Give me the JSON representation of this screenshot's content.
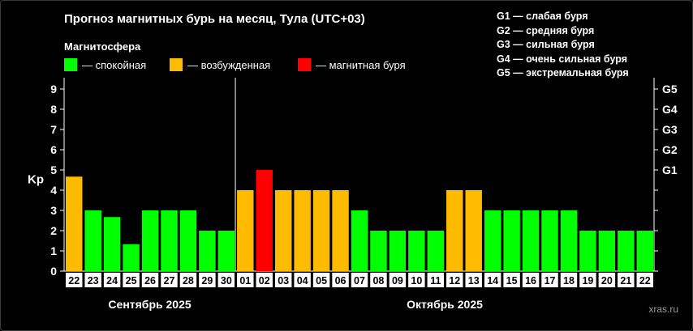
{
  "chart_data": {
    "type": "bar",
    "title": "Прогноз магнитных бурь на месяц, Тула (UTC+03)",
    "ylabel": "Kp",
    "ylim": [
      0,
      9
    ],
    "yticks": [
      "0",
      "1",
      "2",
      "3",
      "4",
      "5",
      "6",
      "7",
      "8",
      "9"
    ],
    "storm_levels": [
      "G1",
      "G2",
      "G3",
      "G4",
      "G5"
    ],
    "categories": [
      "22",
      "23",
      "24",
      "25",
      "26",
      "27",
      "28",
      "29",
      "30",
      "01",
      "02",
      "03",
      "04",
      "05",
      "06",
      "07",
      "08",
      "09",
      "10",
      "11",
      "12",
      "13",
      "14",
      "15",
      "16",
      "17",
      "18",
      "19",
      "20",
      "21",
      "22"
    ],
    "values": [
      4.67,
      3,
      2.67,
      1.33,
      3,
      3,
      3,
      2,
      2,
      4,
      5,
      4,
      4,
      4,
      4,
      3,
      2,
      2,
      2,
      2,
      4,
      4,
      3,
      3,
      3,
      3,
      3,
      2,
      2,
      2,
      2
    ],
    "months": [
      {
        "label": "Сентябрь 2025",
        "start": 0,
        "end": 8
      },
      {
        "label": "Октябрь 2025",
        "start": 9,
        "end": 30
      }
    ],
    "colors": {
      "calm": "#00ff00",
      "excited": "#ffbb00",
      "storm": "#ff0000"
    }
  },
  "legend": {
    "title": "Магнитосфера",
    "items": [
      {
        "label": "— спокойная",
        "color": "#00ff00"
      },
      {
        "label": "— возбужденная",
        "color": "#ffbb00"
      },
      {
        "label": "— магнитная буря",
        "color": "#ff0000"
      }
    ]
  },
  "g_legend": [
    "G1 — слабая буря",
    "G2 — средняя буря",
    "G3 — сильная буря",
    "G4 — очень сильная буря",
    "G5 — экстремальная буря"
  ],
  "credit": "xras.ru"
}
